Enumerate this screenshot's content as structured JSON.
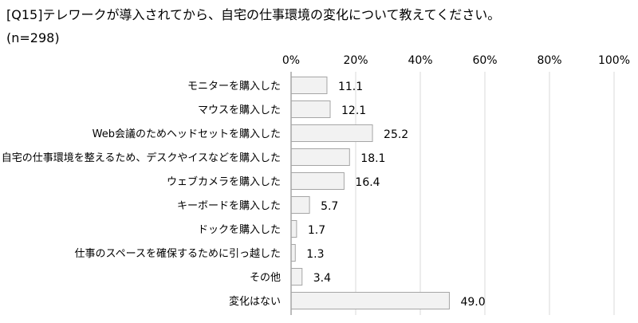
{
  "chart_data": {
    "type": "bar",
    "orientation": "horizontal",
    "title": "[Q15]テレワークが導入されてから、自宅の仕事環境の変化について教えてください。",
    "subtitle": "(n=298)",
    "xlabel": "",
    "ylabel": "",
    "xlim": [
      0,
      100
    ],
    "tick_labels": [
      "0%",
      "20%",
      "40%",
      "60%",
      "80%",
      "100%"
    ],
    "grid": true,
    "categories": [
      "モニターを購入した",
      "マウスを購入した",
      "Web会議のためヘッドセットを購入した",
      "自宅の仕事環境を整えるため、デスクやイスなどを購入した",
      "ウェブカメラを購入した",
      "キーボードを購入した",
      "ドックを購入した",
      "仕事のスペースを確保するために引っ越した",
      "その他",
      "変化はない"
    ],
    "values": [
      11.1,
      12.1,
      25.2,
      18.1,
      16.4,
      5.7,
      1.7,
      1.3,
      3.4,
      49.0
    ],
    "value_labels": [
      "11.1",
      "12.1",
      "25.2",
      "18.1",
      "16.4",
      "5.7",
      "1.7",
      "1.3",
      "3.4",
      "49.0"
    ],
    "colors": {
      "bar_fill": "#f2f2f2",
      "bar_stroke": "#a6a6a6",
      "grid": "#d9d9d9",
      "axis": "#a6a6a6",
      "text": "#000000"
    }
  }
}
